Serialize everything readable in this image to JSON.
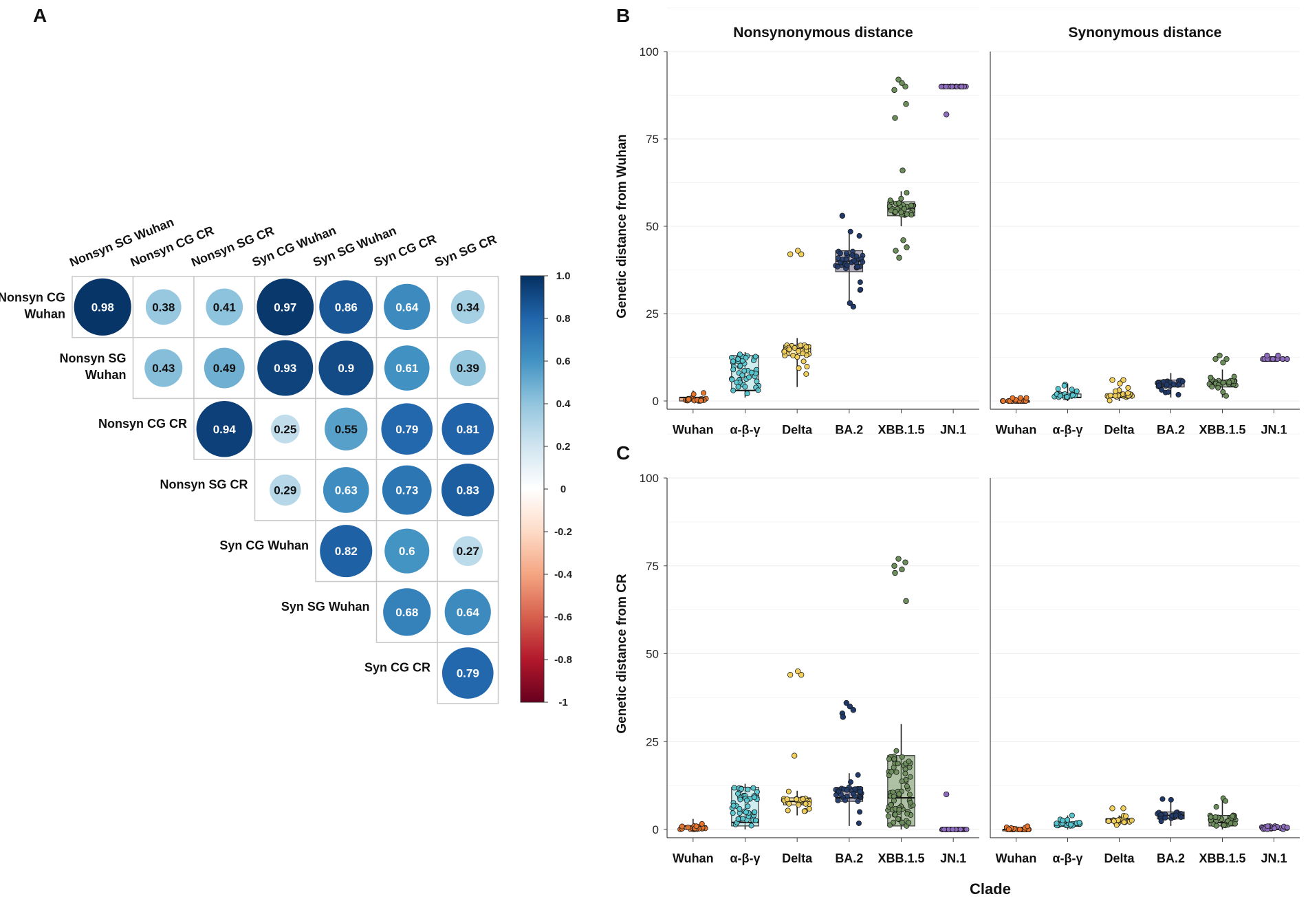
{
  "panels": {
    "A": "A",
    "B": "B",
    "C": "C"
  },
  "chart_data": [
    {
      "type": "heatmap",
      "panel": "A",
      "subtype": "correlation-circle-matrix-upper",
      "columns": [
        "Nonsyn SG Wuhan",
        "Nonsyn CG CR",
        "Nonsyn SG CR",
        "Syn CG Wuhan",
        "Syn SG Wuhan",
        "Syn CG CR",
        "Syn SG CR"
      ],
      "rows": [
        "Nonsyn CG Wuhan",
        "Nonsyn SG Wuhan",
        "Nonsyn CG CR",
        "Nonsyn SG CR",
        "Syn CG Wuhan",
        "Syn SG Wuhan",
        "Syn CG CR"
      ],
      "values": [
        [
          0.98,
          0.38,
          0.41,
          0.97,
          0.86,
          0.64,
          0.34
        ],
        [
          null,
          0.43,
          0.49,
          0.93,
          0.9,
          0.61,
          0.39
        ],
        [
          null,
          null,
          0.94,
          0.25,
          0.55,
          0.79,
          0.81
        ],
        [
          null,
          null,
          null,
          0.29,
          0.63,
          0.73,
          0.83
        ],
        [
          null,
          null,
          null,
          null,
          0.82,
          0.6,
          0.27
        ],
        [
          null,
          null,
          null,
          null,
          null,
          0.68,
          0.64
        ],
        [
          null,
          null,
          null,
          null,
          null,
          null,
          0.79
        ]
      ],
      "colorbar": {
        "ticks": [
          "1.0",
          "0.8",
          "0.6",
          "0.4",
          "0.2",
          "0",
          "-0.2",
          "-0.4",
          "-0.6",
          "-0.8",
          "-1"
        ],
        "range": [
          -1,
          1
        ],
        "colors": [
          "#67001f",
          "#b2182b",
          "#d6604d",
          "#f4a582",
          "#fddbc7",
          "#ffffff",
          "#d1e5f0",
          "#92c5de",
          "#4393c3",
          "#2166ac",
          "#053061"
        ]
      }
    },
    {
      "type": "box",
      "panel": "B",
      "facets": [
        "Nonsynonymous distance",
        "Synonymous distance"
      ],
      "ylabel": "Genetic distance from Wuhan",
      "xlabel": "",
      "categories": [
        "Wuhan",
        "α-β-γ",
        "Delta",
        "BA.2",
        "XBB.1.5",
        "JN.1"
      ],
      "colors": [
        "#e8752a",
        "#55c6cf",
        "#f2cf5a",
        "#1f3a6a",
        "#6b8e5a",
        "#8e6bbf"
      ],
      "box_fill": [
        "#e8752a",
        "#a8dde2",
        "#f3d36e",
        "#6f6a8c",
        "#6b8e5a",
        "#8e6bbf"
      ],
      "ylim": [
        0,
        100
      ],
      "yticks": [
        0,
        25,
        50,
        75,
        100
      ],
      "facet_values": [
        {
          "facet": "Nonsynonymous distance",
          "boxes": [
            {
              "q1": 0,
              "median": 1,
              "q3": 1,
              "lo": 0,
              "hi": 3
            },
            {
              "q1": 3,
              "median": 3,
              "q3": 13,
              "lo": 1,
              "hi": 14
            },
            {
              "q1": 13,
              "median": 15,
              "q3": 16,
              "lo": 4,
              "hi": 18
            },
            {
              "q1": 37,
              "median": 40,
              "q3": 43,
              "lo": 28,
              "hi": 49
            },
            {
              "q1": 53,
              "median": 55,
              "q3": 57,
              "lo": 50,
              "hi": 60
            },
            {
              "q1": 90,
              "median": 90,
              "q3": 90,
              "lo": 90,
              "hi": 90
            }
          ],
          "outliers": [
            {
              "x": "Delta",
              "y": [
                42,
                42,
                43
              ]
            },
            {
              "x": "BA.2",
              "y": [
                53,
                27,
                28
              ]
            },
            {
              "x": "XBB.1.5",
              "y": [
                89,
                90,
                91,
                92,
                81,
                85,
                66,
                41,
                43,
                44,
                46
              ]
            },
            {
              "x": "JN.1",
              "y": [
                82
              ]
            }
          ]
        },
        {
          "facet": "Synonymous distance",
          "boxes": [
            {
              "q1": 0,
              "median": 0,
              "q3": 0,
              "lo": 0,
              "hi": 1
            },
            {
              "q1": 1,
              "median": 1,
              "q3": 2,
              "lo": 0,
              "hi": 5
            },
            {
              "q1": 1,
              "median": 1,
              "q3": 2,
              "lo": 0,
              "hi": 4
            },
            {
              "q1": 4,
              "median": 5,
              "q3": 6,
              "lo": 1,
              "hi": 8
            },
            {
              "q1": 4,
              "median": 5,
              "q3": 6,
              "lo": 1,
              "hi": 9
            },
            {
              "q1": 12,
              "median": 12,
              "q3": 12,
              "lo": 12,
              "hi": 12
            }
          ],
          "outliers": [
            {
              "x": "Delta",
              "y": [
                6,
                6,
                5
              ]
            },
            {
              "x": "XBB.1.5",
              "y": [
                12,
                12,
                11,
                13
              ]
            },
            {
              "x": "JN.1",
              "y": [
                13,
                13
              ]
            }
          ]
        }
      ]
    },
    {
      "type": "box",
      "panel": "C",
      "facets": [
        "Nonsynonymous distance",
        "Synonymous distance"
      ],
      "ylabel": "Genetic distance from CR",
      "xlabel": "Clade",
      "categories": [
        "Wuhan",
        "α-β-γ",
        "Delta",
        "BA.2",
        "XBB.1.5",
        "JN.1"
      ],
      "ylim": [
        0,
        100
      ],
      "yticks": [
        0,
        25,
        50,
        75,
        100
      ],
      "facet_values": [
        {
          "facet": "Nonsynonymous distance",
          "boxes": [
            {
              "q1": 0,
              "median": 1,
              "q3": 1,
              "lo": 0,
              "hi": 3
            },
            {
              "q1": 1,
              "median": 2,
              "q3": 12,
              "lo": 0,
              "hi": 13
            },
            {
              "q1": 7,
              "median": 8,
              "q3": 9,
              "lo": 4,
              "hi": 11
            },
            {
              "q1": 8,
              "median": 9,
              "q3": 12,
              "lo": 1,
              "hi": 16
            },
            {
              "q1": 1,
              "median": 9,
              "q3": 21,
              "lo": 0,
              "hi": 30
            },
            {
              "q1": 0,
              "median": 0,
              "q3": 0,
              "lo": 0,
              "hi": 0
            }
          ],
          "outliers": [
            {
              "x": "Delta",
              "y": [
                44,
                44,
                45,
                21
              ]
            },
            {
              "x": "BA.2",
              "y": [
                33,
                34,
                35,
                36,
                32
              ]
            },
            {
              "x": "XBB.1.5",
              "y": [
                75,
                76,
                74,
                77,
                73,
                65
              ]
            },
            {
              "x": "JN.1",
              "y": [
                10
              ]
            }
          ]
        },
        {
          "facet": "Synonymous distance",
          "boxes": [
            {
              "q1": 0,
              "median": 0,
              "q3": 0,
              "lo": 0,
              "hi": 1
            },
            {
              "q1": 1,
              "median": 1,
              "q3": 2,
              "lo": 0,
              "hi": 4
            },
            {
              "q1": 2,
              "median": 3,
              "q3": 3,
              "lo": 1,
              "hi": 4
            },
            {
              "q1": 3,
              "median": 4,
              "q3": 5,
              "lo": 1,
              "hi": 9
            },
            {
              "q1": 1,
              "median": 2,
              "q3": 4,
              "lo": 0,
              "hi": 9
            },
            {
              "q1": 0,
              "median": 0,
              "q3": 1,
              "lo": 0,
              "hi": 1
            }
          ],
          "outliers": [
            {
              "x": "Delta",
              "y": [
                6,
                6
              ]
            }
          ]
        }
      ]
    }
  ]
}
